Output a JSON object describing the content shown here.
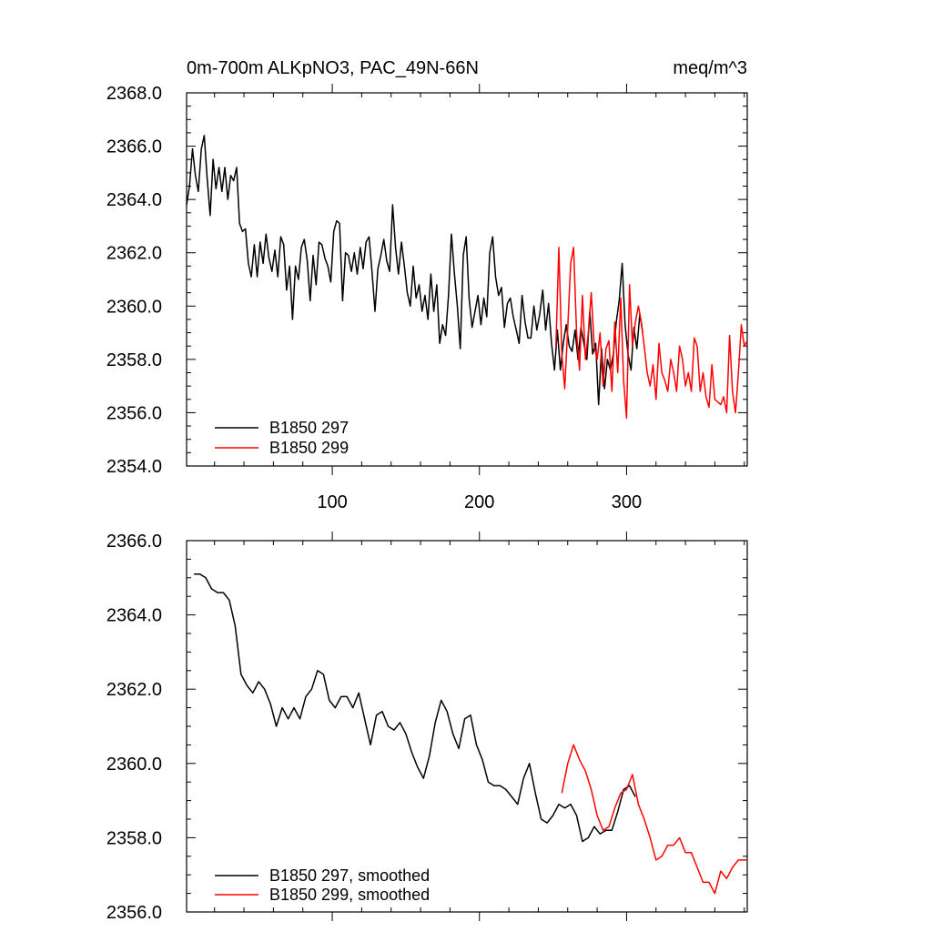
{
  "colors": {
    "run_297": "#000000",
    "run_299": "#ff0000",
    "frame": "#000000"
  },
  "chart_data": [
    {
      "type": "line",
      "title": "0m-700m ALKpNO3, PAC_49N-66N",
      "units": "meq/m^3",
      "xlim": [
        1,
        382
      ],
      "ylim": [
        2354,
        2368
      ],
      "x_tick_labels": [
        "100",
        "200",
        "300"
      ],
      "x_ticks": [
        100,
        200,
        300
      ],
      "y_ticks": [
        2354,
        2356,
        2358,
        2360,
        2362,
        2364,
        2366,
        2368
      ],
      "y_tick_labels": [
        "2354.0",
        "2356.0",
        "2358.0",
        "2360.0",
        "2362.0",
        "2364.0",
        "2366.0",
        "2368.0"
      ],
      "legend_position": "bottom-left",
      "series": [
        {
          "name": "B1850 297",
          "color": "#000000",
          "x": [
            1,
            3,
            5,
            7,
            9,
            11,
            13,
            15,
            17,
            19,
            21,
            23,
            25,
            27,
            29,
            31,
            33,
            35,
            37,
            39,
            41,
            43,
            45,
            47,
            49,
            51,
            53,
            55,
            57,
            59,
            61,
            63,
            65,
            67,
            69,
            71,
            73,
            75,
            77,
            79,
            81,
            83,
            85,
            87,
            89,
            91,
            93,
            95,
            97,
            99,
            101,
            103,
            105,
            107,
            109,
            111,
            113,
            115,
            117,
            119,
            121,
            123,
            125,
            127,
            129,
            131,
            133,
            135,
            137,
            139,
            141,
            143,
            145,
            147,
            149,
            151,
            153,
            155,
            157,
            159,
            161,
            163,
            165,
            167,
            169,
            171,
            173,
            175,
            177,
            179,
            181,
            183,
            185,
            187,
            189,
            191,
            193,
            195,
            197,
            199,
            201,
            203,
            205,
            207,
            209,
            211,
            213,
            215,
            217,
            219,
            221,
            223,
            225,
            227,
            229,
            231,
            233,
            235,
            237,
            239,
            241,
            243,
            245,
            247,
            249,
            251,
            253,
            255,
            257,
            259,
            261,
            263,
            265,
            267,
            269,
            271,
            273,
            275,
            277,
            279,
            281,
            283,
            285,
            287,
            289,
            291,
            293,
            295,
            297,
            299,
            301,
            303,
            305,
            307,
            309,
            311
          ],
          "y": [
            2363.8,
            2364.5,
            2365.9,
            2364.9,
            2364.3,
            2365.9,
            2366.4,
            2364.8,
            2363.4,
            2365.5,
            2364.4,
            2365.2,
            2364.3,
            2365.2,
            2364.0,
            2364.9,
            2364.7,
            2365.2,
            2363.1,
            2362.8,
            2362.9,
            2361.6,
            2361.1,
            2362.3,
            2361.1,
            2362.4,
            2361.6,
            2362.7,
            2361.8,
            2361.3,
            2362.1,
            2361.1,
            2362.6,
            2362.3,
            2360.6,
            2361.5,
            2359.5,
            2361.5,
            2361.0,
            2362.2,
            2362.5,
            2361.7,
            2360.2,
            2361.9,
            2360.8,
            2362.4,
            2362.3,
            2361.8,
            2361.5,
            2360.9,
            2362.8,
            2363.2,
            2363.1,
            2360.2,
            2362.0,
            2361.9,
            2361.3,
            2362.0,
            2361.2,
            2362.2,
            2361.4,
            2362.4,
            2362.6,
            2361.3,
            2359.8,
            2361.4,
            2361.9,
            2362.5,
            2361.7,
            2361.3,
            2363.8,
            2362.2,
            2361.2,
            2362.4,
            2361.5,
            2360.5,
            2360.0,
            2361.5,
            2360.3,
            2360.8,
            2359.8,
            2360.4,
            2359.5,
            2361.2,
            2359.8,
            2360.8,
            2358.6,
            2359.3,
            2358.9,
            2360.4,
            2362.7,
            2361.2,
            2360.0,
            2358.4,
            2361.9,
            2362.6,
            2360.3,
            2359.2,
            2359.8,
            2360.4,
            2359.3,
            2360.3,
            2359.6,
            2362.0,
            2362.6,
            2361.1,
            2360.4,
            2360.7,
            2359.2,
            2360.1,
            2360.3,
            2359.6,
            2359.1,
            2358.6,
            2360.4,
            2359.4,
            2358.8,
            2358.8,
            2360.0,
            2359.1,
            2359.7,
            2360.6,
            2359.1,
            2360.1,
            2358.6,
            2357.6,
            2359.1,
            2357.6,
            2358.6,
            2359.3,
            2358.5,
            2358.3,
            2359.1,
            2358.0,
            2359.2,
            2358.6,
            2358.0,
            2359.8,
            2358.2,
            2358.6,
            2356.3,
            2358.4,
            2356.9,
            2358.0,
            2357.6,
            2358.2,
            2359.4,
            2360.2,
            2361.6,
            2359.3,
            2358.2,
            2357.6,
            2359.2,
            2358.4,
            2359.7,
            2359.0
          ]
        },
        {
          "name": "B1850 299",
          "color": "#ff0000",
          "x": [
            252,
            254,
            256,
            258,
            260,
            262,
            264,
            266,
            268,
            270,
            272,
            274,
            276,
            278,
            280,
            282,
            284,
            286,
            288,
            290,
            292,
            294,
            296,
            298,
            300,
            302,
            304,
            306,
            308,
            310,
            312,
            314,
            316,
            318,
            320,
            322,
            324,
            326,
            328,
            330,
            332,
            334,
            336,
            338,
            340,
            342,
            344,
            346,
            348,
            350,
            352,
            354,
            356,
            358,
            360,
            362,
            364,
            366,
            368,
            370,
            372,
            374,
            376,
            378,
            380,
            382
          ],
          "y": [
            2358.5,
            2362.2,
            2358.2,
            2356.9,
            2359.2,
            2361.6,
            2362.2,
            2359.0,
            2357.6,
            2360.4,
            2358.0,
            2359.0,
            2360.5,
            2358.5,
            2358.0,
            2359.0,
            2357.0,
            2358.4,
            2358.7,
            2356.8,
            2359.4,
            2357.5,
            2360.3,
            2357.2,
            2355.8,
            2360.8,
            2358.5,
            2359.4,
            2360.0,
            2359.4,
            2358.5,
            2357.5,
            2357.0,
            2357.8,
            2356.5,
            2358.6,
            2357.5,
            2357.2,
            2356.8,
            2358.0,
            2357.5,
            2356.8,
            2358.5,
            2358.0,
            2357.0,
            2357.5,
            2356.8,
            2358.8,
            2358.5,
            2356.8,
            2357.5,
            2356.6,
            2356.2,
            2357.8,
            2356.5,
            2356.4,
            2356.3,
            2356.6,
            2356.0,
            2358.9,
            2356.8,
            2356.0,
            2357.5,
            2359.3,
            2358.5,
            2358.7
          ]
        }
      ]
    },
    {
      "type": "line",
      "title": "",
      "xlim": [
        1,
        382
      ],
      "ylim": [
        2356,
        2366
      ],
      "x_ticks": [
        100,
        200,
        300
      ],
      "y_ticks": [
        2356,
        2358,
        2360,
        2362,
        2364,
        2366
      ],
      "y_tick_labels": [
        "2356.0",
        "2358.0",
        "2360.0",
        "2362.0",
        "2364.0",
        "2366.0"
      ],
      "legend_position": "bottom-left",
      "series": [
        {
          "name": "B1850 297, smoothed",
          "color": "#000000",
          "x": [
            6,
            10,
            14,
            18,
            22,
            26,
            30,
            34,
            38,
            42,
            46,
            50,
            54,
            58,
            62,
            66,
            70,
            74,
            78,
            82,
            86,
            90,
            94,
            98,
            102,
            106,
            110,
            114,
            118,
            122,
            126,
            130,
            134,
            138,
            142,
            146,
            150,
            154,
            158,
            162,
            166,
            170,
            174,
            178,
            182,
            186,
            190,
            194,
            198,
            202,
            206,
            210,
            214,
            218,
            222,
            226,
            230,
            234,
            238,
            242,
            246,
            250,
            254,
            258,
            262,
            266,
            270,
            274,
            278,
            282,
            286,
            290,
            294,
            298,
            302,
            306
          ],
          "y": [
            2365.1,
            2365.1,
            2365.0,
            2364.7,
            2364.6,
            2364.6,
            2364.4,
            2363.7,
            2362.4,
            2362.1,
            2361.9,
            2362.2,
            2362.0,
            2361.6,
            2361.0,
            2361.5,
            2361.2,
            2361.5,
            2361.2,
            2361.8,
            2362.0,
            2362.5,
            2362.4,
            2361.7,
            2361.5,
            2361.8,
            2361.8,
            2361.5,
            2361.9,
            2361.2,
            2360.5,
            2361.3,
            2361.4,
            2361.0,
            2360.9,
            2361.1,
            2360.8,
            2360.3,
            2359.9,
            2359.6,
            2360.2,
            2361.1,
            2361.7,
            2361.4,
            2360.8,
            2360.4,
            2361.2,
            2361.3,
            2360.5,
            2360.1,
            2359.5,
            2359.4,
            2359.4,
            2359.3,
            2359.1,
            2358.9,
            2359.6,
            2360.0,
            2359.2,
            2358.5,
            2358.4,
            2358.6,
            2358.9,
            2358.8,
            2358.9,
            2358.6,
            2357.9,
            2358.0,
            2358.3,
            2358.1,
            2358.2,
            2358.2,
            2358.7,
            2359.3,
            2359.4,
            2359.1
          ]
        },
        {
          "name": "B1850 299, smoothed",
          "color": "#ff0000",
          "x": [
            256,
            260,
            264,
            268,
            272,
            276,
            280,
            284,
            288,
            292,
            296,
            300,
            304,
            308,
            312,
            316,
            320,
            324,
            328,
            332,
            336,
            340,
            344,
            348,
            352,
            356,
            360,
            364,
            368,
            372,
            376,
            380,
            382
          ],
          "y": [
            2359.2,
            2360.0,
            2360.5,
            2360.1,
            2359.8,
            2359.3,
            2358.6,
            2358.2,
            2358.3,
            2358.8,
            2359.2,
            2359.3,
            2359.7,
            2358.9,
            2358.5,
            2358.0,
            2357.4,
            2357.5,
            2357.8,
            2357.8,
            2358.0,
            2357.6,
            2357.6,
            2357.2,
            2356.8,
            2356.8,
            2356.5,
            2357.1,
            2356.9,
            2357.2,
            2357.4,
            2357.4,
            2357.4
          ]
        }
      ]
    }
  ]
}
